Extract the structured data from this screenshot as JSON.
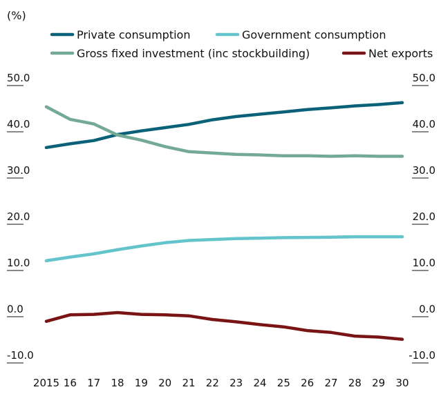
{
  "chart_data": {
    "type": "line",
    "unit_label": "(%)",
    "x": [
      "2015",
      "16",
      "17",
      "18",
      "19",
      "20",
      "21",
      "22",
      "23",
      "24",
      "25",
      "26",
      "27",
      "28",
      "29",
      "30"
    ],
    "yticks": [
      "50.0",
      "40.0",
      "30.0",
      "20.0",
      "10.0",
      "0.0",
      "-10.0"
    ],
    "ylim": [
      -10,
      50
    ],
    "grid": false,
    "legend_position": "top",
    "series": [
      {
        "name": "Private consumption",
        "color": "#0b6278",
        "values": [
          36.6,
          37.4,
          38.1,
          39.4,
          40.2,
          40.9,
          41.6,
          42.6,
          43.3,
          43.8,
          44.3,
          44.8,
          45.2,
          45.6,
          45.9,
          46.3
        ]
      },
      {
        "name": "Government consumption",
        "color": "#64c4cc",
        "values": [
          12.1,
          12.9,
          13.6,
          14.5,
          15.3,
          16.0,
          16.5,
          16.7,
          16.9,
          17.0,
          17.1,
          17.15,
          17.2,
          17.3,
          17.3,
          17.3
        ]
      },
      {
        "name": "Gross fixed investment (inc stockbuilding)",
        "color": "#74a995",
        "values": [
          45.4,
          42.7,
          41.7,
          39.3,
          38.2,
          36.8,
          35.7,
          35.4,
          35.1,
          35.0,
          34.8,
          34.8,
          34.7,
          34.8,
          34.7,
          34.7
        ]
      },
      {
        "name": "Net exports",
        "color": "#7a1414",
        "values": [
          -1.0,
          0.4,
          0.5,
          0.9,
          0.5,
          0.4,
          0.2,
          -0.6,
          -1.1,
          -1.7,
          -2.2,
          -3.0,
          -3.4,
          -4.2,
          -4.4,
          -4.9
        ]
      }
    ]
  }
}
